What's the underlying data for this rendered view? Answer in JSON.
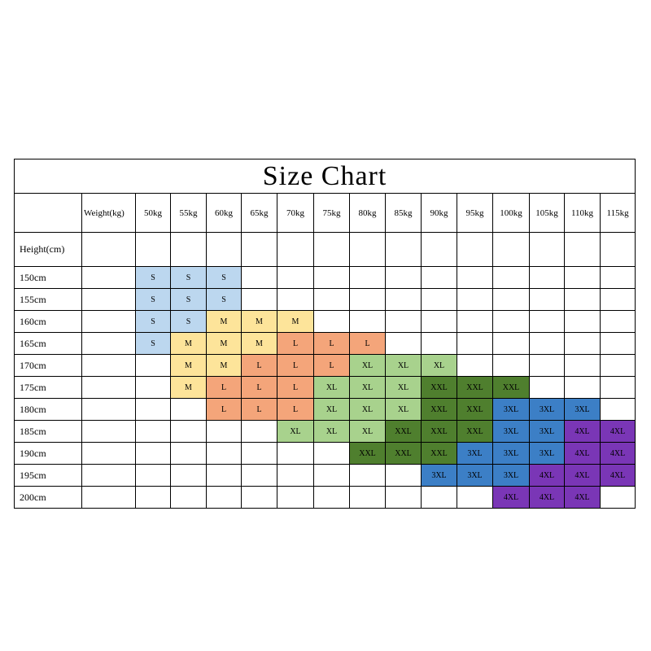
{
  "chart_data": {
    "type": "table",
    "title": "Size Chart",
    "weight_header": "Weight(kg)",
    "height_header": "Height(cm)",
    "weights": [
      "50kg",
      "55kg",
      "60kg",
      "65kg",
      "70kg",
      "75kg",
      "80kg",
      "85kg",
      "90kg",
      "95kg",
      "100kg",
      "105kg",
      "110kg",
      "115kg"
    ],
    "rows": [
      {
        "height": "150cm",
        "sizes": [
          "S",
          "S",
          "S",
          "",
          "",
          "",
          "",
          "",
          "",
          "",
          "",
          "",
          "",
          ""
        ]
      },
      {
        "height": "155cm",
        "sizes": [
          "S",
          "S",
          "S",
          "",
          "",
          "",
          "",
          "",
          "",
          "",
          "",
          "",
          "",
          ""
        ]
      },
      {
        "height": "160cm",
        "sizes": [
          "S",
          "S",
          "M",
          "M",
          "M",
          "",
          "",
          "",
          "",
          "",
          "",
          "",
          "",
          ""
        ]
      },
      {
        "height": "165cm",
        "sizes": [
          "S",
          "M",
          "M",
          "M",
          "L",
          "L",
          "L",
          "",
          "",
          "",
          "",
          "",
          "",
          ""
        ]
      },
      {
        "height": "170cm",
        "sizes": [
          "",
          "M",
          "M",
          "L",
          "L",
          "L",
          "XL",
          "XL",
          "XL",
          "",
          "",
          "",
          "",
          ""
        ]
      },
      {
        "height": "175cm",
        "sizes": [
          "",
          "M",
          "L",
          "L",
          "L",
          "XL",
          "XL",
          "XL",
          "XXL",
          "XXL",
          "XXL",
          "",
          "",
          ""
        ]
      },
      {
        "height": "180cm",
        "sizes": [
          "",
          "",
          "L",
          "L",
          "L",
          "XL",
          "XL",
          "XL",
          "XXL",
          "XXL",
          "3XL",
          "3XL",
          "3XL",
          ""
        ]
      },
      {
        "height": "185cm",
        "sizes": [
          "",
          "",
          "",
          "",
          "XL",
          "XL",
          "XL",
          "XXL",
          "XXL",
          "XXL",
          "3XL",
          "3XL",
          "4XL",
          "4XL"
        ]
      },
      {
        "height": "190cm",
        "sizes": [
          "",
          "",
          "",
          "",
          "",
          "",
          "XXL",
          "XXL",
          "XXL",
          "3XL",
          "3XL",
          "3XL",
          "4XL",
          "4XL"
        ]
      },
      {
        "height": "195cm",
        "sizes": [
          "",
          "",
          "",
          "",
          "",
          "",
          "",
          "",
          "3XL",
          "3XL",
          "3XL",
          "4XL",
          "4XL",
          "4XL"
        ]
      },
      {
        "height": "200cm",
        "sizes": [
          "",
          "",
          "",
          "",
          "",
          "",
          "",
          "",
          "",
          "",
          "4XL",
          "4XL",
          "4XL",
          ""
        ]
      }
    ],
    "size_colors": {
      "S": "#bcd7ef",
      "M": "#fde49a",
      "L": "#f4a57a",
      "XL": "#a8d28d",
      "XXL": "#4f7f2e",
      "3XL": "#3c7fc6",
      "4XL": "#7a36b6"
    }
  }
}
